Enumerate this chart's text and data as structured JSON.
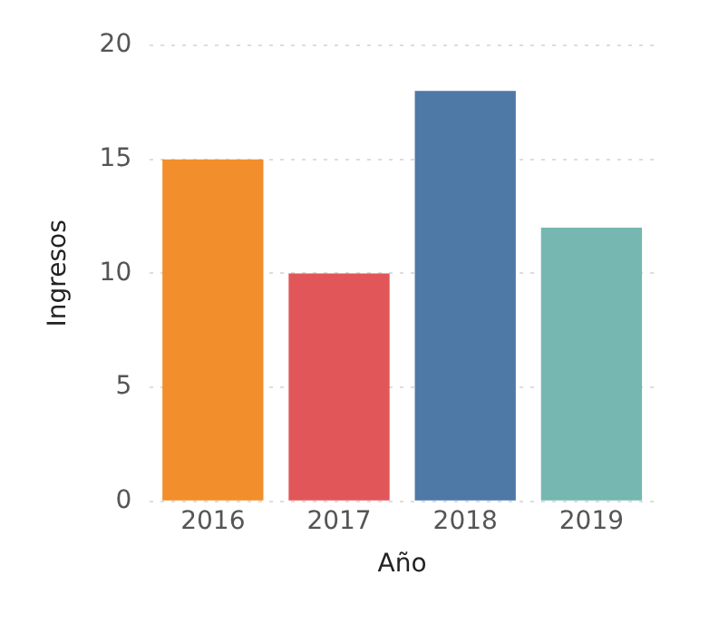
{
  "chart_data": {
    "type": "bar",
    "xlabel": "Año",
    "ylabel": "Ingresos",
    "categories": [
      "2016",
      "2017",
      "2018",
      "2019"
    ],
    "values": [
      15,
      10,
      18,
      12
    ],
    "colors": [
      "#f28e2b",
      "#e15759",
      "#4e79a7",
      "#76b7b2"
    ],
    "ylim": [
      0,
      20
    ],
    "yticks": [
      0,
      5,
      10,
      15,
      20
    ],
    "grid": "y",
    "legend": false
  }
}
